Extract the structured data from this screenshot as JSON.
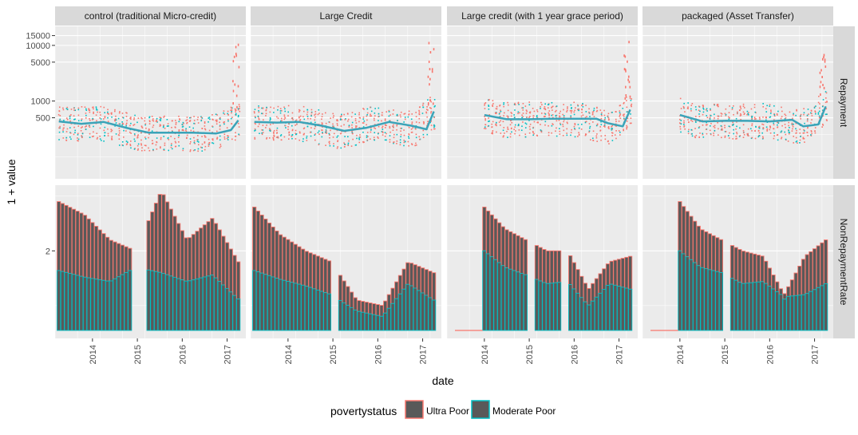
{
  "colors": {
    "ultra_poor": "#F8766D",
    "moderate_poor": "#00BFC4",
    "bar_fill": "#595959",
    "panel_bg": "#EBEBEB",
    "strip_bg": "#D9D9D9",
    "grid_major": "#FFFFFF",
    "smooth_line": "#3BA3B8"
  },
  "chart_data": {
    "type": "faceted-bar-and-scatter",
    "ylabel": "1 + value",
    "xlabel": "date",
    "x_ticks": [
      "2014",
      "2015",
      "2016",
      "2017"
    ],
    "x_range": [
      "2013-03",
      "2017-06"
    ],
    "facets": [
      "control (traditional Micro-credit)",
      "Large Credit",
      "Large credit (with 1 year grace period)",
      "packaged (Asset Transfer)"
    ],
    "rows": [
      "Repayment",
      "NonRepaymentRate"
    ],
    "repayment_scale": "log",
    "repayment_y_ticks": [
      "500",
      "1000",
      "5000",
      "10000",
      "15000"
    ],
    "repayment_y_tick_values": [
      500,
      1000,
      5000,
      10000,
      15000
    ],
    "nonrepayment_y_ticks": [
      "2"
    ],
    "legend": {
      "title": "povertystatus",
      "entries": [
        "Ultra Poor",
        "Moderate Poor"
      ],
      "position": "bottom"
    },
    "repayment_smooth": [
      {
        "date": [
          "2013-04",
          "2013-10",
          "2014-04",
          "2014-10",
          "2015-04",
          "2015-10",
          "2016-04",
          "2016-10",
          "2017-02",
          "2017-04"
        ],
        "value": [
          430,
          390,
          420,
          330,
          270,
          270,
          270,
          260,
          300,
          450
        ]
      },
      {
        "date": [
          "2013-04",
          "2013-10",
          "2014-04",
          "2014-10",
          "2015-04",
          "2015-10",
          "2016-04",
          "2016-10",
          "2017-02",
          "2017-04"
        ],
        "value": [
          420,
          410,
          420,
          360,
          290,
          330,
          420,
          360,
          310,
          650
        ]
      },
      {
        "date": [
          "2014-01",
          "2014-07",
          "2015-01",
          "2015-07",
          "2016-01",
          "2016-07",
          "2016-10",
          "2017-02",
          "2017-04"
        ],
        "value": [
          560,
          470,
          470,
          480,
          480,
          480,
          400,
          350,
          700
        ]
      },
      {
        "date": [
          "2014-01",
          "2014-07",
          "2015-01",
          "2015-07",
          "2016-01",
          "2016-07",
          "2016-10",
          "2017-02",
          "2017-04"
        ],
        "value": [
          560,
          430,
          440,
          440,
          430,
          460,
          350,
          380,
          800
        ]
      }
    ],
    "nonrepayment_bars": [
      {
        "months": [
          [
            "2013-04",
            "2014-11"
          ],
          [
            "2015-04",
            "2017-04"
          ]
        ],
        "total": [
          2.45,
          2.33,
          2.1,
          2.0,
          2.55,
          2.1,
          2.3,
          1.9
        ],
        "moderate": [
          1.82,
          1.76,
          1.72,
          1.85,
          1.8,
          1.72,
          1.78,
          1.56
        ]
      },
      {
        "months": [
          [
            "2013-04",
            "2014-12"
          ],
          [
            "2015-03",
            "2017-04"
          ]
        ],
        "total": [
          2.4,
          2.15,
          2.0,
          1.9,
          1.55,
          1.5,
          1.9,
          1.8
        ],
        "moderate": [
          1.82,
          1.74,
          1.68,
          1.6,
          1.45,
          1.4,
          1.7,
          1.55
        ]
      },
      {
        "months": [
          [
            "2014-01",
            "2014-12"
          ],
          [
            "2015-03",
            "2015-09"
          ],
          [
            "2015-12",
            "2017-04"
          ]
        ],
        "total": [
          2.4,
          2.2,
          2.1,
          2.0,
          2.0,
          1.65,
          1.9,
          1.95
        ],
        "moderate": [
          2.0,
          1.85,
          1.78,
          1.7,
          1.72,
          1.5,
          1.7,
          1.65
        ]
      },
      {
        "months": [
          [
            "2014-01",
            "2014-12"
          ],
          [
            "2015-03",
            "2015-11"
          ],
          [
            "2015-12",
            "2017-04"
          ]
        ],
        "total": [
          2.45,
          2.2,
          2.1,
          2.0,
          1.95,
          1.6,
          1.95,
          2.1
        ],
        "moderate": [
          2.0,
          1.85,
          1.8,
          1.7,
          1.72,
          1.58,
          1.6,
          1.7
        ]
      }
    ]
  }
}
